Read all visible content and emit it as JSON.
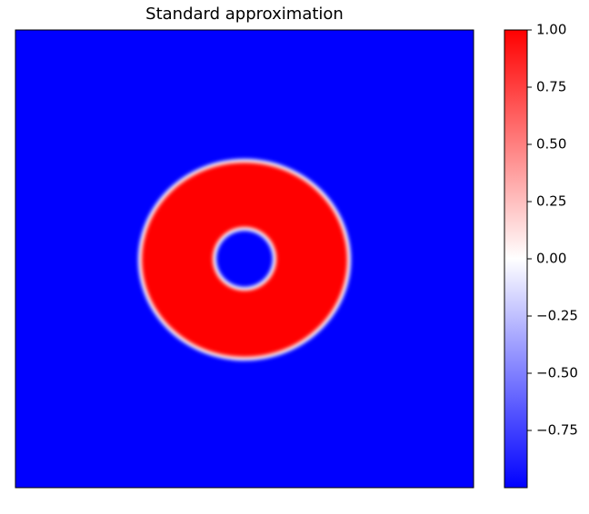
{
  "chart_data": {
    "type": "image",
    "title": "Standard approximation",
    "colormap": [
      "#0000ff",
      "#ffffff",
      "#ff0000"
    ],
    "clim": [
      -1,
      1
    ],
    "cticks": [
      {
        "value": 1,
        "label": "1.00"
      },
      {
        "value": 0.75,
        "label": "0.75"
      },
      {
        "value": 0.5,
        "label": "0.50"
      },
      {
        "value": 0.25,
        "label": "0.25"
      },
      {
        "value": 0,
        "label": "0.00"
      },
      {
        "value": -0.25,
        "label": "−0.25"
      },
      {
        "value": -0.5,
        "label": "−0.50"
      },
      {
        "value": -0.75,
        "label": "−0.75"
      }
    ]
  }
}
